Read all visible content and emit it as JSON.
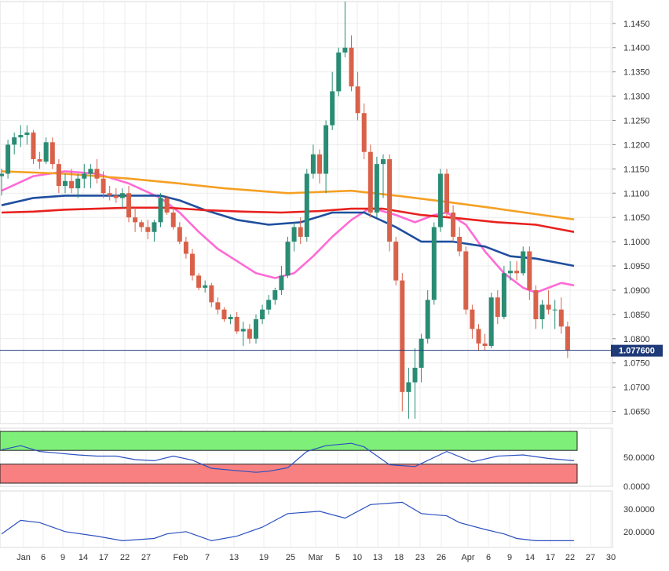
{
  "chart_data": {
    "type": "candlestick",
    "instrument_price_label": "1.077600",
    "current_price": 1.0776,
    "x_tick_labels": [
      "Jan",
      "6",
      "9",
      "14",
      "17",
      "22",
      "27",
      "Feb",
      "7",
      "13",
      "19",
      "25",
      "Mar",
      "5",
      "10",
      "13",
      "18",
      "23",
      "26",
      "Apr",
      "6",
      "9",
      "14",
      "17",
      "22",
      "27",
      "30"
    ],
    "price_axis": {
      "ylim": [
        1.0625,
        1.1495
      ],
      "tick_labels": [
        "1.1450",
        "1.1400",
        "1.1350",
        "1.1300",
        "1.1250",
        "1.1200",
        "1.1150",
        "1.1100",
        "1.1050",
        "1.1000",
        "1.0950",
        "1.0900",
        "1.0850",
        "1.0800",
        "1.0750",
        "1.0700",
        "1.0650"
      ]
    },
    "candles": [
      [
        1.1135,
        1.115,
        1.1095,
        1.114
      ],
      [
        1.114,
        1.121,
        1.113,
        1.12
      ],
      [
        1.12,
        1.1225,
        1.118,
        1.1215
      ],
      [
        1.1215,
        1.124,
        1.1195,
        1.122
      ],
      [
        1.122,
        1.124,
        1.12,
        1.1225
      ],
      [
        1.1225,
        1.123,
        1.116,
        1.117
      ],
      [
        1.117,
        1.1185,
        1.115,
        1.1165
      ],
      [
        1.1165,
        1.1215,
        1.116,
        1.1205
      ],
      [
        1.1205,
        1.1215,
        1.115,
        1.116
      ],
      [
        1.116,
        1.117,
        1.11,
        1.1115
      ],
      [
        1.1115,
        1.114,
        1.11,
        1.1125
      ],
      [
        1.1125,
        1.115,
        1.11,
        1.111
      ],
      [
        1.111,
        1.114,
        1.109,
        1.113
      ],
      [
        1.113,
        1.116,
        1.111,
        1.114
      ],
      [
        1.114,
        1.116,
        1.111,
        1.115
      ],
      [
        1.115,
        1.117,
        1.112,
        1.113
      ],
      [
        1.113,
        1.1145,
        1.109,
        1.11
      ],
      [
        1.11,
        1.1115,
        1.1085,
        1.1095
      ],
      [
        1.1095,
        1.111,
        1.108,
        1.109
      ],
      [
        1.109,
        1.111,
        1.107,
        1.11
      ],
      [
        1.11,
        1.1115,
        1.104,
        1.105
      ],
      [
        1.105,
        1.107,
        1.102,
        1.104
      ],
      [
        1.104,
        1.1045,
        1.102,
        1.103
      ],
      [
        1.103,
        1.1045,
        1.1005,
        1.102
      ],
      [
        1.102,
        1.1045,
        1.1,
        1.104
      ],
      [
        1.104,
        1.11,
        1.103,
        1.109
      ],
      [
        1.109,
        1.1095,
        1.1055,
        1.106
      ],
      [
        1.106,
        1.107,
        1.1025,
        1.103
      ],
      [
        1.103,
        1.104,
        1.0995,
        1.1
      ],
      [
        1.1,
        1.101,
        1.0965,
        1.0975
      ],
      [
        1.0975,
        1.0985,
        1.092,
        1.093
      ],
      [
        1.093,
        1.0935,
        1.09,
        1.0905
      ],
      [
        1.0905,
        1.092,
        1.0895,
        1.091
      ],
      [
        1.091,
        1.0915,
        1.0865,
        1.0875
      ],
      [
        1.0875,
        1.0885,
        1.085,
        1.086
      ],
      [
        1.086,
        1.0865,
        1.0835,
        1.084
      ],
      [
        1.084,
        1.085,
        1.083,
        1.0845
      ],
      [
        1.0845,
        1.0855,
        1.081,
        1.0815
      ],
      [
        1.0815,
        1.0835,
        1.0785,
        1.082
      ],
      [
        1.082,
        1.083,
        1.079,
        1.08
      ],
      [
        1.08,
        1.085,
        1.079,
        1.084
      ],
      [
        1.084,
        1.087,
        1.083,
        1.086
      ],
      [
        1.086,
        1.089,
        1.085,
        1.088
      ],
      [
        1.088,
        1.0905,
        1.087,
        1.09
      ],
      [
        1.09,
        1.095,
        1.089,
        1.093
      ],
      [
        1.093,
        1.101,
        1.0925,
        1.1
      ],
      [
        1.1,
        1.104,
        1.098,
        1.103
      ],
      [
        1.103,
        1.105,
        1.0995,
        1.101
      ],
      [
        1.101,
        1.115,
        1.1,
        1.114
      ],
      [
        1.114,
        1.12,
        1.113,
        1.118
      ],
      [
        1.118,
        1.119,
        1.112,
        1.114
      ],
      [
        1.114,
        1.125,
        1.11,
        1.124
      ],
      [
        1.124,
        1.135,
        1.123,
        1.131
      ],
      [
        1.131,
        1.14,
        1.13,
        1.139
      ],
      [
        1.139,
        1.1495,
        1.138,
        1.14
      ],
      [
        1.14,
        1.1425,
        1.131,
        1.132
      ],
      [
        1.132,
        1.135,
        1.125,
        1.1265
      ],
      [
        1.1265,
        1.1285,
        1.117,
        1.1185
      ],
      [
        1.1185,
        1.12,
        1.105,
        1.106
      ],
      [
        1.106,
        1.1175,
        1.105,
        1.116
      ],
      [
        1.116,
        1.118,
        1.109,
        1.117
      ],
      [
        1.117,
        1.118,
        1.098,
        1.1
      ],
      [
        1.1,
        1.101,
        1.091,
        1.092
      ],
      [
        1.092,
        1.0935,
        1.065,
        1.069
      ],
      [
        1.069,
        1.074,
        1.0635,
        1.071
      ],
      [
        1.071,
        1.078,
        1.0635,
        1.074
      ],
      [
        1.074,
        1.081,
        1.071,
        1.08
      ],
      [
        1.08,
        1.09,
        1.079,
        1.088
      ],
      [
        1.088,
        1.104,
        1.087,
        1.103
      ],
      [
        1.103,
        1.115,
        1.102,
        1.114
      ],
      [
        1.114,
        1.115,
        1.105,
        1.106
      ],
      [
        1.106,
        1.1075,
        1.1,
        1.101
      ],
      [
        1.101,
        1.103,
        1.097,
        1.098
      ],
      [
        1.098,
        1.099,
        1.085,
        1.086
      ],
      [
        1.086,
        1.087,
        1.08,
        1.082
      ],
      [
        1.082,
        1.083,
        1.0775,
        1.079
      ],
      [
        1.079,
        1.081,
        1.0775,
        1.0785
      ],
      [
        1.0785,
        1.0895,
        1.078,
        1.0885
      ],
      [
        1.0885,
        1.09,
        1.083,
        1.0845
      ],
      [
        1.0845,
        1.095,
        1.084,
        1.0935
      ],
      [
        1.0935,
        1.096,
        1.092,
        1.094
      ],
      [
        1.094,
        1.096,
        1.092,
        1.0935
      ],
      [
        1.0935,
        1.099,
        1.093,
        1.098
      ],
      [
        1.098,
        1.099,
        1.088,
        1.09
      ],
      [
        1.09,
        1.091,
        1.082,
        1.084
      ],
      [
        1.084,
        1.088,
        1.082,
        1.087
      ],
      [
        1.087,
        1.09,
        1.085,
        1.086
      ],
      [
        1.086,
        1.088,
        1.082,
        1.086
      ],
      [
        1.086,
        1.0885,
        1.081,
        1.0825
      ],
      [
        1.0825,
        1.0835,
        1.076,
        1.0776
      ]
    ],
    "moving_averages": [
      {
        "color": "#ff6ad5",
        "values": [
          [
            0,
            1.1105
          ],
          [
            5,
            1.1135
          ],
          [
            10,
            1.1145
          ],
          [
            15,
            1.114
          ],
          [
            20,
            1.112
          ],
          [
            25,
            1.109
          ],
          [
            28,
            1.106
          ],
          [
            31,
            1.102
          ],
          [
            34,
            1.0985
          ],
          [
            37,
            1.096
          ],
          [
            40,
            1.0935
          ],
          [
            43,
            1.0925
          ],
          [
            46,
            1.0935
          ],
          [
            49,
            1.097
          ],
          [
            52,
            1.101
          ],
          [
            55,
            1.1045
          ],
          [
            58,
            1.107
          ],
          [
            62,
            1.1055
          ],
          [
            65,
            1.104
          ],
          [
            68,
            1.1055
          ],
          [
            70,
            1.106
          ],
          [
            73,
            1.1035
          ],
          [
            76,
            1.098
          ],
          [
            79,
            1.0935
          ],
          [
            82,
            1.0905
          ],
          [
            84,
            1.0895
          ],
          [
            86,
            1.0905
          ],
          [
            88,
            1.0915
          ],
          [
            90,
            1.091
          ]
        ]
      },
      {
        "color": "#1f4e9e",
        "values": [
          [
            0,
            1.1075
          ],
          [
            5,
            1.109
          ],
          [
            10,
            1.1095
          ],
          [
            20,
            1.1095
          ],
          [
            25,
            1.1095
          ],
          [
            28,
            1.1085
          ],
          [
            32,
            1.1065
          ],
          [
            37,
            1.1045
          ],
          [
            42,
            1.1035
          ],
          [
            47,
            1.104
          ],
          [
            52,
            1.106
          ],
          [
            57,
            1.106
          ],
          [
            62,
            1.103
          ],
          [
            66,
            1.1
          ],
          [
            71,
            1.1
          ],
          [
            76,
            1.099
          ],
          [
            80,
            1.097
          ],
          [
            84,
            1.0965
          ],
          [
            88,
            1.0955
          ],
          [
            90,
            1.095
          ]
        ]
      },
      {
        "color": "#e8211e",
        "values": [
          [
            0,
            1.106
          ],
          [
            5,
            1.1062
          ],
          [
            10,
            1.1066
          ],
          [
            15,
            1.1068
          ],
          [
            20,
            1.107
          ],
          [
            26,
            1.107
          ],
          [
            32,
            1.1065
          ],
          [
            38,
            1.1062
          ],
          [
            44,
            1.106
          ],
          [
            50,
            1.1063
          ],
          [
            55,
            1.1068
          ],
          [
            60,
            1.1068
          ],
          [
            66,
            1.1055
          ],
          [
            72,
            1.1048
          ],
          [
            78,
            1.104
          ],
          [
            84,
            1.1035
          ],
          [
            88,
            1.1025
          ],
          [
            90,
            1.102
          ]
        ]
      },
      {
        "color": "#f5a023",
        "values": [
          [
            0,
            1.1145
          ],
          [
            10,
            1.114
          ],
          [
            20,
            1.113
          ],
          [
            28,
            1.112
          ],
          [
            35,
            1.111
          ],
          [
            45,
            1.11
          ],
          [
            55,
            1.1105
          ],
          [
            62,
            1.1095
          ],
          [
            70,
            1.1082
          ],
          [
            78,
            1.1068
          ],
          [
            85,
            1.1055
          ],
          [
            90,
            1.1046
          ]
        ]
      }
    ],
    "indicator_1": {
      "ylim": [
        0,
        100
      ],
      "tick_labels": [
        "50.0000",
        "0.0000"
      ],
      "overbought_level": 70,
      "oversold_level": 30,
      "values": [
        [
          0,
          63
        ],
        [
          3,
          70
        ],
        [
          6,
          60
        ],
        [
          9,
          57
        ],
        [
          12,
          54
        ],
        [
          15,
          52
        ],
        [
          18,
          52
        ],
        [
          21,
          46
        ],
        [
          24,
          44
        ],
        [
          27,
          52
        ],
        [
          30,
          45
        ],
        [
          33,
          31
        ],
        [
          36,
          28
        ],
        [
          40,
          24
        ],
        [
          42,
          26
        ],
        [
          45,
          32
        ],
        [
          48,
          60
        ],
        [
          51,
          70
        ],
        [
          53,
          72
        ],
        [
          55,
          74
        ],
        [
          57,
          68
        ],
        [
          61,
          37
        ],
        [
          65,
          34
        ],
        [
          70,
          60
        ],
        [
          74,
          42
        ],
        [
          78,
          52
        ],
        [
          82,
          54
        ],
        [
          86,
          48
        ],
        [
          90,
          44
        ]
      ]
    },
    "indicator_2": {
      "ylim": [
        13,
        38
      ],
      "tick_labels": [
        "30.0000",
        "20.0000"
      ],
      "values": [
        [
          0,
          19
        ],
        [
          3,
          25
        ],
        [
          6,
          24
        ],
        [
          10,
          20
        ],
        [
          15,
          18
        ],
        [
          19,
          16
        ],
        [
          24,
          17
        ],
        [
          26,
          19
        ],
        [
          29,
          20
        ],
        [
          33,
          16
        ],
        [
          37,
          18
        ],
        [
          41,
          22
        ],
        [
          45,
          28
        ],
        [
          50,
          29
        ],
        [
          54,
          26
        ],
        [
          58,
          32
        ],
        [
          63,
          33
        ],
        [
          66,
          28
        ],
        [
          70,
          27
        ],
        [
          72,
          24
        ],
        [
          76,
          21
        ],
        [
          79,
          19
        ],
        [
          81,
          17
        ],
        [
          84,
          16
        ],
        [
          86,
          16
        ],
        [
          88,
          16
        ],
        [
          90,
          16
        ]
      ]
    }
  }
}
